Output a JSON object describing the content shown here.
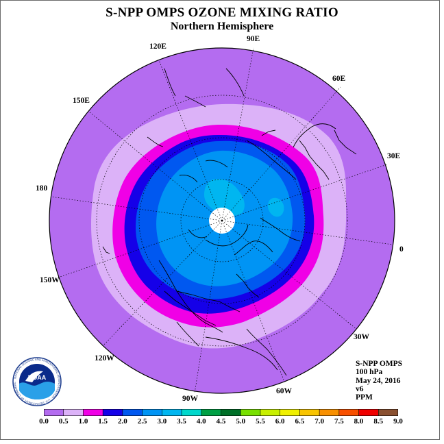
{
  "header": {
    "title": "S-NPP OMPS OZONE MIXING RATIO",
    "subtitle": "Northern Hemisphere"
  },
  "map": {
    "projection": "north-polar-stereographic",
    "longitude_labels": [
      "90E",
      "60E",
      "30E",
      "0",
      "30W",
      "60W",
      "90W",
      "120W",
      "150W",
      "180",
      "150E",
      "120E"
    ],
    "ocean_color": "#ffffff",
    "missing_data_color": "#ffffff"
  },
  "info": {
    "instrument": "S-NPP OMPS",
    "level": "100 hPa",
    "date": "May 24, 2016",
    "version": "v6",
    "units": "PPM"
  },
  "colorbar": {
    "ticks": [
      "0.0",
      "0.5",
      "1.0",
      "1.5",
      "2.0",
      "2.5",
      "3.0",
      "3.5",
      "4.0",
      "4.5",
      "5.0",
      "5.5",
      "6.0",
      "6.5",
      "7.0",
      "7.5",
      "8.0",
      "8.5",
      "9.0"
    ],
    "colors": [
      "#b46cf0",
      "#dcb2f8",
      "#f000e6",
      "#1500e8",
      "#0058f0",
      "#0094f4",
      "#00b6f0",
      "#00d8cc",
      "#00a044",
      "#007028",
      "#78e000",
      "#c8f000",
      "#f0f000",
      "#f8c400",
      "#f89000",
      "#f85000",
      "#f00000",
      "#8a5030"
    ]
  },
  "logo": {
    "name": "NOAA",
    "ring_text": "NATIONAL OCEANIC AND ATMOSPHERIC ADMINISTRATION · U.S. DEPARTMENT OF COMMERCE"
  }
}
